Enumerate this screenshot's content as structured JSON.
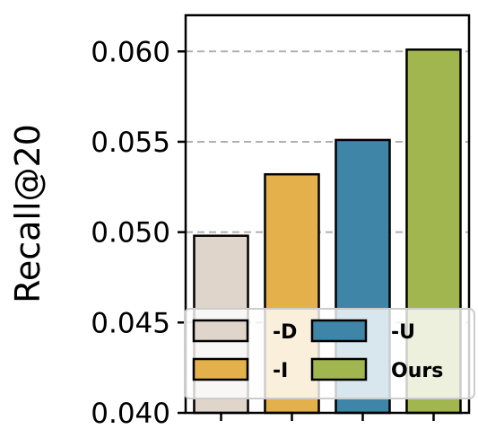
{
  "chart_data": {
    "type": "bar",
    "title": "",
    "xlabel": "",
    "ylabel": "Recall@20",
    "ylim": [
      0.04,
      0.062
    ],
    "yticks": [
      "0.040",
      "0.045",
      "0.050",
      "0.055",
      "0.060"
    ],
    "grid": "horizontal dashed",
    "legend_position": "lower-center",
    "categories": [
      "-D",
      "-I",
      "-U",
      "Ours"
    ],
    "values": [
      0.0498,
      0.0532,
      0.0551,
      0.0601
    ],
    "colors": [
      "#e0d5ca",
      "#e3b04b",
      "#3e85a8",
      "#a2b64f"
    ],
    "legend": [
      {
        "label": "-D",
        "color": "#e0d5ca"
      },
      {
        "label": "-U",
        "color": "#3e85a8"
      },
      {
        "label": "-I",
        "color": "#e3b04b"
      },
      {
        "label": "Ours",
        "color": "#a2b64f"
      }
    ]
  }
}
